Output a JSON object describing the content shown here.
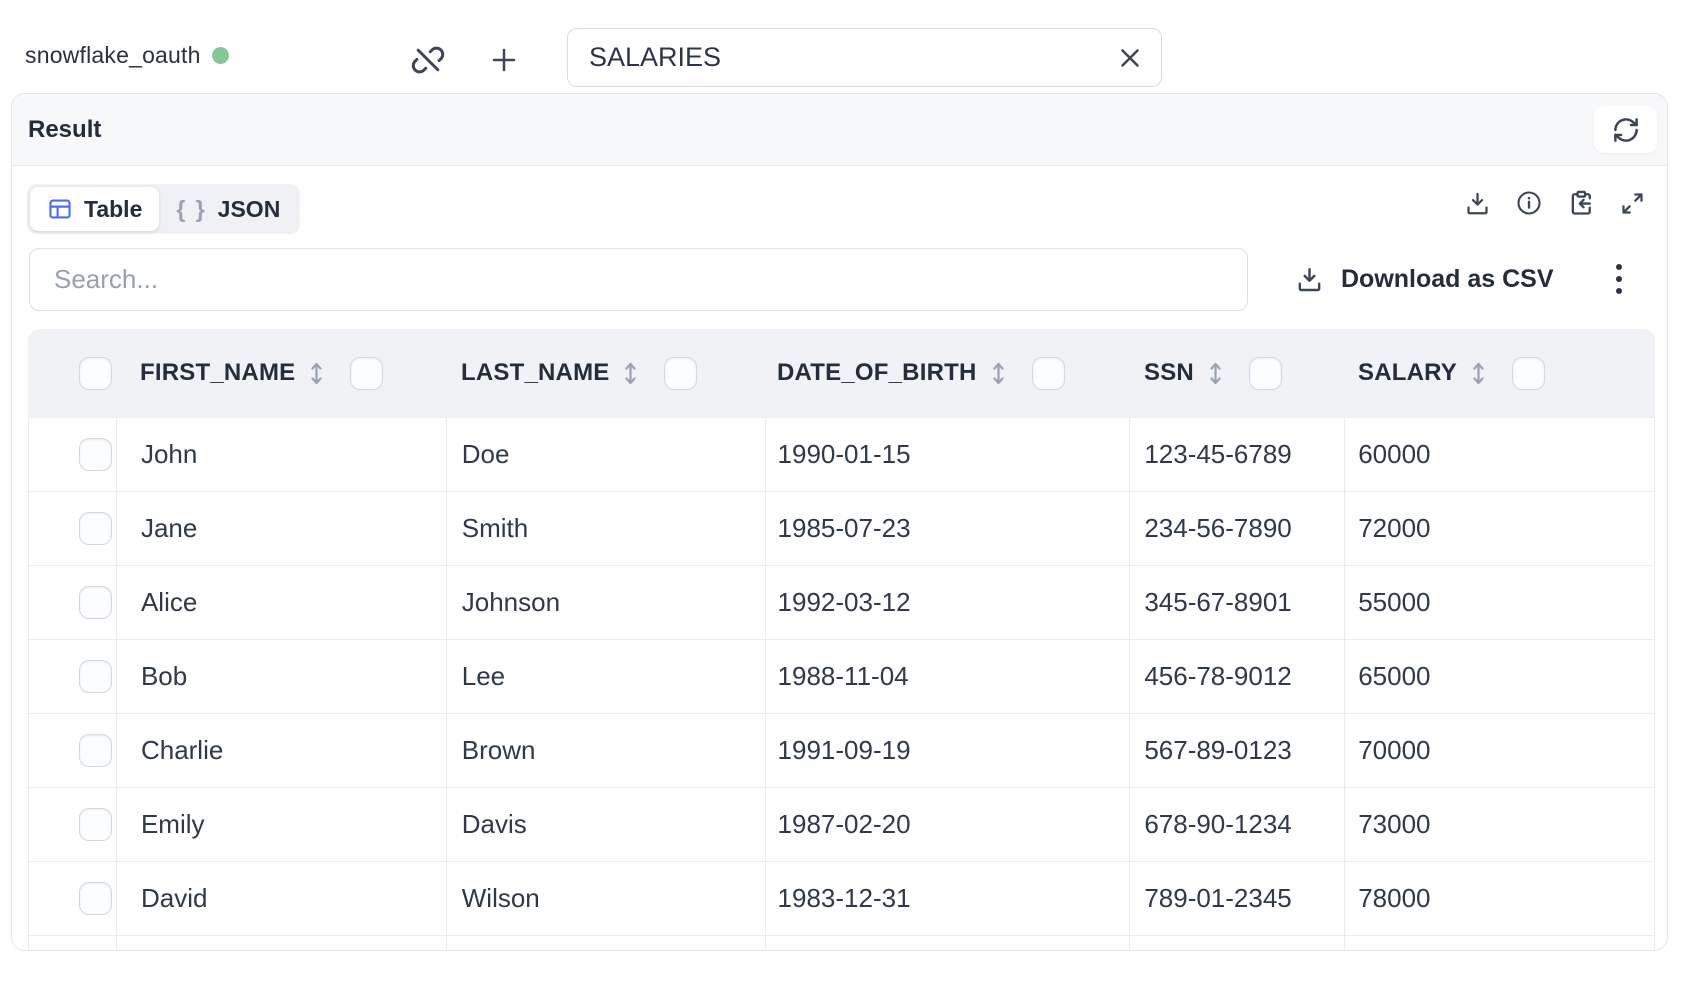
{
  "topbar": {
    "connection_name": "snowflake_oauth",
    "table_name_value": "SALARIES"
  },
  "result_panel": {
    "title": "Result",
    "tabs": {
      "table_label": "Table",
      "json_label": "JSON",
      "json_icon_text": "{ }"
    },
    "search_placeholder": "Search...",
    "download_csv_label": "Download as CSV"
  },
  "table": {
    "columns": [
      "FIRST_NAME",
      "LAST_NAME",
      "DATE_OF_BIRTH",
      "SSN",
      "SALARY"
    ],
    "rows": [
      [
        "John",
        "Doe",
        "1990-01-15",
        "123-45-6789",
        "60000"
      ],
      [
        "Jane",
        "Smith",
        "1985-07-23",
        "234-56-7890",
        "72000"
      ],
      [
        "Alice",
        "Johnson",
        "1992-03-12",
        "345-67-8901",
        "55000"
      ],
      [
        "Bob",
        "Lee",
        "1988-11-04",
        "456-78-9012",
        "65000"
      ],
      [
        "Charlie",
        "Brown",
        "1991-09-19",
        "567-89-0123",
        "70000"
      ],
      [
        "Emily",
        "Davis",
        "1987-02-20",
        "678-90-1234",
        "73000"
      ],
      [
        "David",
        "Wilson",
        "1983-12-31",
        "789-01-2345",
        "78000"
      ]
    ]
  },
  "icons": {
    "topbar": [
      "status-dot",
      "unlink-icon",
      "add-icon",
      "clear-input-icon"
    ],
    "panel": [
      "refresh-icon",
      "download-icon",
      "info-icon",
      "paste-icon",
      "expand-icon",
      "kebab-menu-icon"
    ],
    "tabs": [
      "table-grid-icon",
      "json-braces-icon"
    ],
    "table": [
      "sort-icon",
      "select-all-checkbox",
      "column-checkbox",
      "row-checkbox"
    ]
  },
  "colors": {
    "accent_blue": "#4c6ef5",
    "status_green": "#85c795",
    "text_dark": "#232d3b",
    "table_header_bg": "#f0f2f6",
    "panel_header_bg": "#f7f8fa",
    "border": "#e7eaee"
  }
}
